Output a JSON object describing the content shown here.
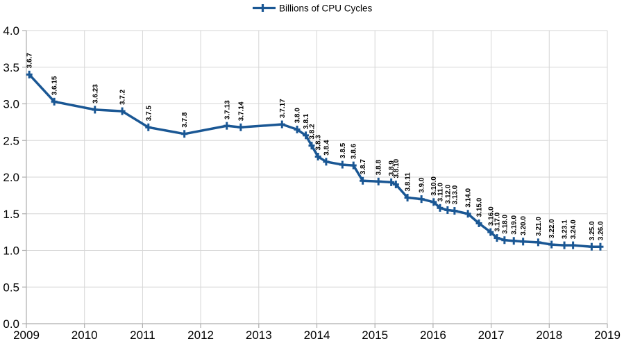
{
  "legend": {
    "label": "Billions of CPU Cycles"
  },
  "colors": {
    "line": "#1A5794",
    "grid": "#d6d6d6",
    "axis": "#aeaeae",
    "text": "#000000",
    "background": "#ffffff"
  },
  "chart_data": {
    "type": "line",
    "title": "",
    "legend": [
      "Billions of CPU Cycles"
    ],
    "legend_position": "top-center",
    "xlabel": "",
    "ylabel": "",
    "xlim": [
      2009,
      2019
    ],
    "ylim": [
      0.0,
      4.0
    ],
    "x_ticks": [
      2009,
      2010,
      2011,
      2012,
      2013,
      2014,
      2015,
      2016,
      2017,
      2018,
      2019
    ],
    "y_ticks": [
      0.0,
      0.5,
      1.0,
      1.5,
      2.0,
      2.5,
      3.0,
      3.5,
      4.0
    ],
    "grid": true,
    "marker": "plus",
    "series_name": "Billions of CPU Cycles",
    "points": [
      {
        "label": "3.6.7",
        "x": 2009.05,
        "y": 3.4
      },
      {
        "label": "3.6.15",
        "x": 2009.48,
        "y": 3.03
      },
      {
        "label": "3.6.23",
        "x": 2010.18,
        "y": 2.92
      },
      {
        "label": "3.7.2",
        "x": 2010.65,
        "y": 2.9
      },
      {
        "label": "3.7.5",
        "x": 2011.1,
        "y": 2.68
      },
      {
        "label": "3.7.8",
        "x": 2011.72,
        "y": 2.59
      },
      {
        "label": "3.7.13",
        "x": 2012.45,
        "y": 2.7
      },
      {
        "label": "3.7.14",
        "x": 2012.69,
        "y": 2.68
      },
      {
        "label": "3.7.17",
        "x": 2013.4,
        "y": 2.72
      },
      {
        "label": "3.8.0",
        "x": 2013.66,
        "y": 2.65
      },
      {
        "label": "3.8.1",
        "x": 2013.81,
        "y": 2.57
      },
      {
        "label": "3.8.2",
        "x": 2013.91,
        "y": 2.43
      },
      {
        "label": "3.8.3",
        "x": 2014.02,
        "y": 2.28
      },
      {
        "label": "3.8.4",
        "x": 2014.16,
        "y": 2.21
      },
      {
        "label": "3.8.5",
        "x": 2014.44,
        "y": 2.17
      },
      {
        "label": "3.8.6",
        "x": 2014.63,
        "y": 2.16
      },
      {
        "label": "3.8.7",
        "x": 2014.79,
        "y": 1.95
      },
      {
        "label": "3.8.8",
        "x": 2015.06,
        "y": 1.94
      },
      {
        "label": "3.8.9",
        "x": 2015.28,
        "y": 1.93
      },
      {
        "label": "3.8.10",
        "x": 2015.36,
        "y": 1.9
      },
      {
        "label": "3.8.11",
        "x": 2015.56,
        "y": 1.72
      },
      {
        "label": "3.9.0",
        "x": 2015.8,
        "y": 1.7
      },
      {
        "label": "3.10.0",
        "x": 2016.01,
        "y": 1.66
      },
      {
        "label": "3.11.0",
        "x": 2016.12,
        "y": 1.58
      },
      {
        "label": "3.12.0",
        "x": 2016.25,
        "y": 1.55
      },
      {
        "label": "3.13.0",
        "x": 2016.37,
        "y": 1.54
      },
      {
        "label": "3.14.0",
        "x": 2016.6,
        "y": 1.5
      },
      {
        "label": "3.15.0",
        "x": 2016.79,
        "y": 1.37
      },
      {
        "label": "3.16.0",
        "x": 2016.99,
        "y": 1.25
      },
      {
        "label": "3.17.0",
        "x": 2017.1,
        "y": 1.17
      },
      {
        "label": "3.18.0",
        "x": 2017.23,
        "y": 1.14
      },
      {
        "label": "3.19.0",
        "x": 2017.39,
        "y": 1.13
      },
      {
        "label": "3.20.0",
        "x": 2017.55,
        "y": 1.12
      },
      {
        "label": "3.21.0",
        "x": 2017.81,
        "y": 1.11
      },
      {
        "label": "3.22.0",
        "x": 2018.04,
        "y": 1.08
      },
      {
        "label": "3.23.1",
        "x": 2018.26,
        "y": 1.07
      },
      {
        "label": "3.24.0",
        "x": 2018.41,
        "y": 1.07
      },
      {
        "label": "3.25.0",
        "x": 2018.73,
        "y": 1.05
      },
      {
        "label": "3.26.0",
        "x": 2018.88,
        "y": 1.05
      }
    ]
  }
}
